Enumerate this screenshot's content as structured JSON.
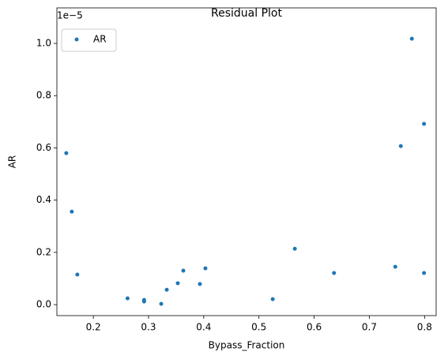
{
  "chart_data": {
    "type": "scatter",
    "title": "Residual Plot",
    "x_label": "Bypass_Fraction",
    "y_label": "AR",
    "y_offset_label": "1e−5",
    "legend": "upper left",
    "series": [
      {
        "name": "AR",
        "color": "#1f77b4",
        "x": [
          0.151,
          0.161,
          0.171,
          0.262,
          0.292,
          0.292,
          0.323,
          0.333,
          0.353,
          0.363,
          0.393,
          0.403,
          0.525,
          0.565,
          0.636,
          0.747,
          0.757,
          0.777,
          0.799,
          0.799
        ],
        "values": [
          0.58,
          0.356,
          0.115,
          0.024,
          0.018,
          0.012,
          0.003,
          0.057,
          0.082,
          0.13,
          0.079,
          0.139,
          0.021,
          0.214,
          0.121,
          0.145,
          0.607,
          1.018,
          0.692,
          0.121
        ]
      }
    ],
    "xlim": [
      0.134,
      0.821
    ],
    "ylim": [
      -0.042,
      1.136
    ],
    "xticks": [
      0.2,
      0.3,
      0.4,
      0.5,
      0.6,
      0.7,
      0.8
    ],
    "yticks": [
      {
        "value": 0,
        "label": "0.0"
      },
      0.2,
      0.4,
      0.6,
      0.8,
      {
        "value": 1,
        "label": "1.0"
      }
    ]
  }
}
